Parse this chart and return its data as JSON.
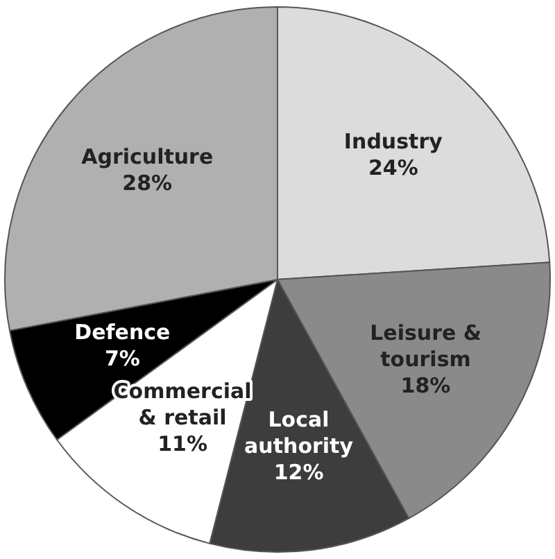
{
  "chart_data": {
    "type": "pie",
    "categories": [
      "Industry",
      "Leisure & tourism",
      "Local authority",
      "Commercial & retail",
      "Defence",
      "Agriculture"
    ],
    "values": [
      24,
      18,
      12,
      11,
      7,
      28
    ],
    "value_labels": [
      "24%",
      "18%",
      "12%",
      "11%",
      "7%",
      "28%"
    ],
    "colors": [
      "#dcdcdc",
      "#8a8a8a",
      "#3d3d3d",
      "#ffffff",
      "#000000",
      "#b0b0b0"
    ],
    "legend": false
  }
}
